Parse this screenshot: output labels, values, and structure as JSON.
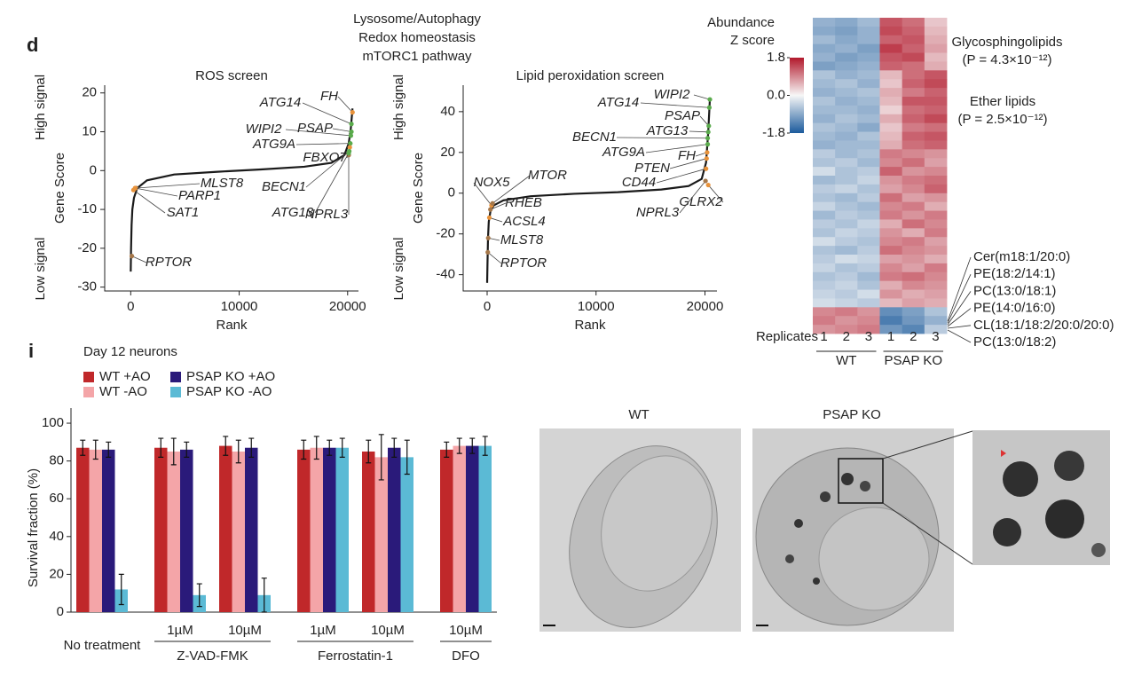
{
  "panel_labels": [
    "d",
    "i"
  ],
  "pathway_legend": [
    {
      "name": "Lysosome/Autophagy",
      "color": "#5aab4c"
    },
    {
      "name": "Redox homeostasis",
      "color": "#e8923a"
    },
    {
      "name": "mTORC1 pathway",
      "color": "#a6784a"
    }
  ],
  "images": [
    {
      "label": "WT"
    },
    {
      "label": "PSAP KO"
    }
  ],
  "chart_data": [
    {
      "type": "line",
      "title": "ROS screen",
      "xlabel": "Rank",
      "ylabel": "Gene Score",
      "high_label": {
        "text": "High signal",
        "color": "#e05a3a"
      },
      "low_label": {
        "text": "Low signal",
        "color": "#5a6fa8"
      },
      "xlim": [
        -2400,
        21000
      ],
      "ylim": [
        -31,
        22
      ],
      "xticks": [
        0,
        10000,
        20000
      ],
      "yticks": [
        -30,
        -20,
        -10,
        0,
        10,
        20
      ],
      "color": "#1a1a1a",
      "x": [
        0,
        30,
        80,
        150,
        300,
        600,
        1500,
        4000,
        8000,
        12000,
        16000,
        18500,
        19700,
        20100,
        20300,
        20450
      ],
      "values": [
        -26,
        -20,
        -14,
        -10,
        -7,
        -4.5,
        -2.5,
        -1,
        -0.3,
        0.3,
        1,
        2,
        4,
        7,
        11,
        16
      ],
      "annotations": [
        {
          "text": "ATG14",
          "x": 20350,
          "y": 12,
          "color": "#5aab4c"
        },
        {
          "text": "FH",
          "x": 20450,
          "y": 15,
          "color": "#e8923a"
        },
        {
          "text": "WIPI2",
          "x": 20300,
          "y": 9,
          "color": "#5aab4c"
        },
        {
          "text": "PSAP",
          "x": 20350,
          "y": 10,
          "color": "#5aab4c"
        },
        {
          "text": "ATG9A",
          "x": 20250,
          "y": 7,
          "color": "#5aab4c"
        },
        {
          "text": "FBXO7",
          "x": 20200,
          "y": 6,
          "color": "#e8923a"
        },
        {
          "text": "BECN1",
          "x": 20150,
          "y": 5,
          "color": "#5aab4c"
        },
        {
          "text": "NPRL3",
          "x": 20100,
          "y": 4,
          "color": "#a6784a"
        },
        {
          "text": "ATG13",
          "x": 20100,
          "y": 4.5,
          "color": "#5aab4c"
        },
        {
          "text": "MLST8",
          "x": 500,
          "y": -4.5,
          "color": "#a6784a"
        },
        {
          "text": "PARP1",
          "x": 400,
          "y": -4.5,
          "color": "#e8923a"
        },
        {
          "text": "SAT1",
          "x": 250,
          "y": -5,
          "color": "#e8923a"
        },
        {
          "text": "RPTOR",
          "x": 100,
          "y": -22,
          "color": "#a6784a"
        }
      ]
    },
    {
      "type": "line",
      "title": "Lipid peroxidation screen",
      "xlabel": "Rank",
      "ylabel": "Gene Score",
      "high_label": {
        "text": "High signal",
        "color": "#e05a3a"
      },
      "low_label": {
        "text": "Low signal",
        "color": "#5a6fa8"
      },
      "xlim": [
        -2200,
        21100
      ],
      "ylim": [
        -48,
        53
      ],
      "xticks": [
        0,
        10000,
        20000
      ],
      "yticks": [
        -40,
        -20,
        0,
        20,
        40
      ],
      "color": "#1a1a1a",
      "x": [
        0,
        30,
        80,
        150,
        300,
        600,
        1500,
        4000,
        8000,
        12000,
        16000,
        18500,
        19700,
        20100,
        20300,
        20450
      ],
      "values": [
        -44,
        -35,
        -22,
        -14,
        -9,
        -6,
        -3.5,
        -1.5,
        -0.3,
        0.5,
        1.8,
        3.5,
        7,
        15,
        30,
        46
      ],
      "annotations": [
        {
          "text": "WIPI2",
          "x": 20450,
          "y": 46,
          "color": "#5aab4c"
        },
        {
          "text": "ATG14",
          "x": 20400,
          "y": 42,
          "color": "#5aab4c"
        },
        {
          "text": "PSAP",
          "x": 20350,
          "y": 33,
          "color": "#5aab4c"
        },
        {
          "text": "ATG13",
          "x": 20300,
          "y": 30,
          "color": "#5aab4c"
        },
        {
          "text": "BECN1",
          "x": 20250,
          "y": 27,
          "color": "#5aab4c"
        },
        {
          "text": "ATG9A",
          "x": 20250,
          "y": 24,
          "color": "#5aab4c"
        },
        {
          "text": "FH",
          "x": 20200,
          "y": 20,
          "color": "#e8923a"
        },
        {
          "text": "PTEN",
          "x": 20150,
          "y": 17,
          "color": "#e8923a"
        },
        {
          "text": "CD44",
          "x": 20100,
          "y": 12,
          "color": "#e8923a"
        },
        {
          "text": "GLRX2",
          "x": 20300,
          "y": 4,
          "color": "#e8923a"
        },
        {
          "text": "NPRL3",
          "x": 20050,
          "y": 6,
          "color": "#a6784a"
        },
        {
          "text": "NOX5",
          "x": 400,
          "y": -6,
          "color": "#e8923a"
        },
        {
          "text": "MTOR",
          "x": 500,
          "y": -5,
          "color": "#a6784a"
        },
        {
          "text": "RHEB",
          "x": 300,
          "y": -8,
          "color": "#a6784a"
        },
        {
          "text": "ACSL4",
          "x": 200,
          "y": -12,
          "color": "#e8923a"
        },
        {
          "text": "MLST8",
          "x": 100,
          "y": -22,
          "color": "#a6784a"
        },
        {
          "text": "RPTOR",
          "x": 60,
          "y": -29,
          "color": "#a6784a"
        }
      ]
    },
    {
      "type": "heatmap",
      "colorbar_title": "Abundance Z score",
      "zlim": [
        -1.8,
        1.8
      ],
      "zticks": [
        1.8,
        {
          "value": 0,
          "label": "0.0"
        },
        -1.8
      ],
      "colormap": [
        "#1b5a9c",
        "#f7f7f7",
        "#b2182b"
      ],
      "column_title": "Replicates",
      "columns": [
        "1",
        "2",
        "3",
        "1",
        "2",
        "3"
      ],
      "groups": [
        {
          "name": "WT"
        },
        {
          "name": "PSAP KO"
        }
      ],
      "row_annotations": [
        {
          "text": "Glycosphingolipids",
          "note": "(P = 4.3×10⁻¹²)"
        },
        {
          "text": "Ether lipids",
          "note": "(P = 2.5×10⁻¹²)"
        }
      ],
      "labels": [
        "Cer(m18:1/20:0)",
        "PE(18:2/14:1)",
        "PC(13:0/18:1)",
        "PE(14:0/16:0)",
        "CL(18:1/18:2/20:0/20:0)",
        "PC(13:0/18:2)"
      ],
      "values": [
        [
          -0.8,
          -0.9,
          -0.7,
          1.3,
          1.1,
          0.4
        ],
        [
          -0.9,
          -1.0,
          -0.8,
          1.4,
          1.2,
          0.5
        ],
        [
          -0.7,
          -0.9,
          -0.8,
          1.2,
          1.3,
          0.6
        ],
        [
          -0.9,
          -0.8,
          -1.0,
          1.5,
          1.2,
          0.7
        ],
        [
          -0.8,
          -1.0,
          -0.9,
          1.3,
          1.4,
          0.5
        ],
        [
          -1.0,
          -0.9,
          -0.8,
          1.2,
          1.1,
          0.6
        ],
        [
          -0.6,
          -0.8,
          -0.7,
          0.5,
          1.1,
          1.3
        ],
        [
          -0.7,
          -0.6,
          -0.8,
          0.4,
          1.2,
          1.4
        ],
        [
          -0.8,
          -0.7,
          -0.6,
          0.6,
          1.0,
          1.2
        ],
        [
          -0.6,
          -0.8,
          -0.7,
          0.5,
          1.3,
          1.3
        ],
        [
          -0.7,
          -0.7,
          -0.8,
          0.3,
          1.1,
          1.2
        ],
        [
          -0.8,
          -0.6,
          -0.7,
          0.6,
          1.2,
          1.4
        ],
        [
          -0.6,
          -0.7,
          -0.9,
          0.4,
          1.0,
          1.1
        ],
        [
          -0.7,
          -0.8,
          -0.6,
          0.5,
          1.2,
          1.3
        ],
        [
          -0.8,
          -0.7,
          -0.7,
          0.6,
          1.1,
          1.2
        ],
        [
          -0.5,
          -0.7,
          -0.6,
          1.0,
          0.9,
          0.8
        ],
        [
          -0.6,
          -0.5,
          -0.7,
          0.9,
          1.1,
          0.7
        ],
        [
          -0.3,
          -0.6,
          -0.5,
          1.2,
          0.8,
          0.9
        ],
        [
          -0.7,
          -0.6,
          -0.4,
          0.8,
          1.0,
          1.1
        ],
        [
          -0.5,
          -0.4,
          -0.6,
          0.7,
          0.9,
          1.2
        ],
        [
          -0.6,
          -0.7,
          -0.5,
          1.1,
          0.7,
          0.8
        ],
        [
          -0.4,
          -0.6,
          -0.7,
          0.9,
          1.0,
          0.6
        ],
        [
          -0.7,
          -0.5,
          -0.6,
          1.0,
          0.8,
          1.0
        ],
        [
          -0.5,
          -0.6,
          -0.4,
          0.6,
          1.1,
          0.9
        ],
        [
          -0.6,
          -0.4,
          -0.5,
          0.8,
          0.6,
          1.0
        ],
        [
          -0.3,
          -0.5,
          -0.6,
          0.9,
          1.0,
          0.7
        ],
        [
          -0.6,
          -0.7,
          -0.5,
          1.1,
          0.9,
          0.8
        ],
        [
          -0.5,
          -0.3,
          -0.4,
          0.7,
          0.8,
          0.6
        ],
        [
          -0.4,
          -0.6,
          -0.5,
          0.9,
          0.7,
          1.0
        ],
        [
          -0.6,
          -0.5,
          -0.7,
          1.0,
          1.1,
          0.9
        ],
        [
          -0.5,
          -0.4,
          -0.6,
          0.6,
          0.9,
          0.8
        ],
        [
          -0.4,
          -0.5,
          -0.3,
          0.8,
          0.6,
          0.7
        ],
        [
          -0.3,
          -0.4,
          -0.5,
          0.5,
          0.7,
          0.6
        ],
        [
          0.9,
          1.0,
          0.8,
          -1.2,
          -1.0,
          -0.6
        ],
        [
          1.0,
          0.8,
          0.9,
          -1.4,
          -1.1,
          -0.8
        ],
        [
          0.8,
          0.9,
          1.0,
          -1.1,
          -1.3,
          -0.5
        ]
      ]
    },
    {
      "type": "bar",
      "subtitle": "Day 12 neurons",
      "ylabel": "Survival fraction (%)",
      "ylim": [
        0,
        108
      ],
      "yticks": [
        0,
        20,
        40,
        60,
        80,
        100
      ],
      "groups": [
        {
          "name": "No treatment",
          "categories": [
            null
          ]
        },
        {
          "name": "Z-VAD-FMK",
          "categories": [
            "1µM",
            "10µM"
          ]
        },
        {
          "name": "Ferrostatin-1",
          "categories": [
            "1µM",
            "10µM"
          ]
        },
        {
          "name": "DFO",
          "categories": [
            "10µM"
          ]
        }
      ],
      "series": [
        {
          "name": "WT +AO",
          "color": "#c0282a",
          "values": [
            87,
            87,
            88,
            86,
            85,
            86
          ],
          "errors": [
            4,
            5,
            5,
            5,
            6,
            4
          ]
        },
        {
          "name": "WT -AO",
          "color": "#f4a5a8",
          "values": [
            86,
            85,
            85,
            87,
            82,
            88
          ],
          "errors": [
            5,
            7,
            6,
            6,
            12,
            4
          ]
        },
        {
          "name": "PSAP KO +AO",
          "color": "#2a1a7a",
          "values": [
            86,
            86,
            87,
            87,
            87,
            88
          ],
          "errors": [
            4,
            4,
            5,
            4,
            5,
            4
          ]
        },
        {
          "name": "PSAP KO -AO",
          "color": "#5bbad5",
          "values": [
            12,
            9,
            9,
            87,
            82,
            88
          ],
          "errors": [
            8,
            6,
            9,
            5,
            9,
            5
          ]
        }
      ]
    }
  ]
}
